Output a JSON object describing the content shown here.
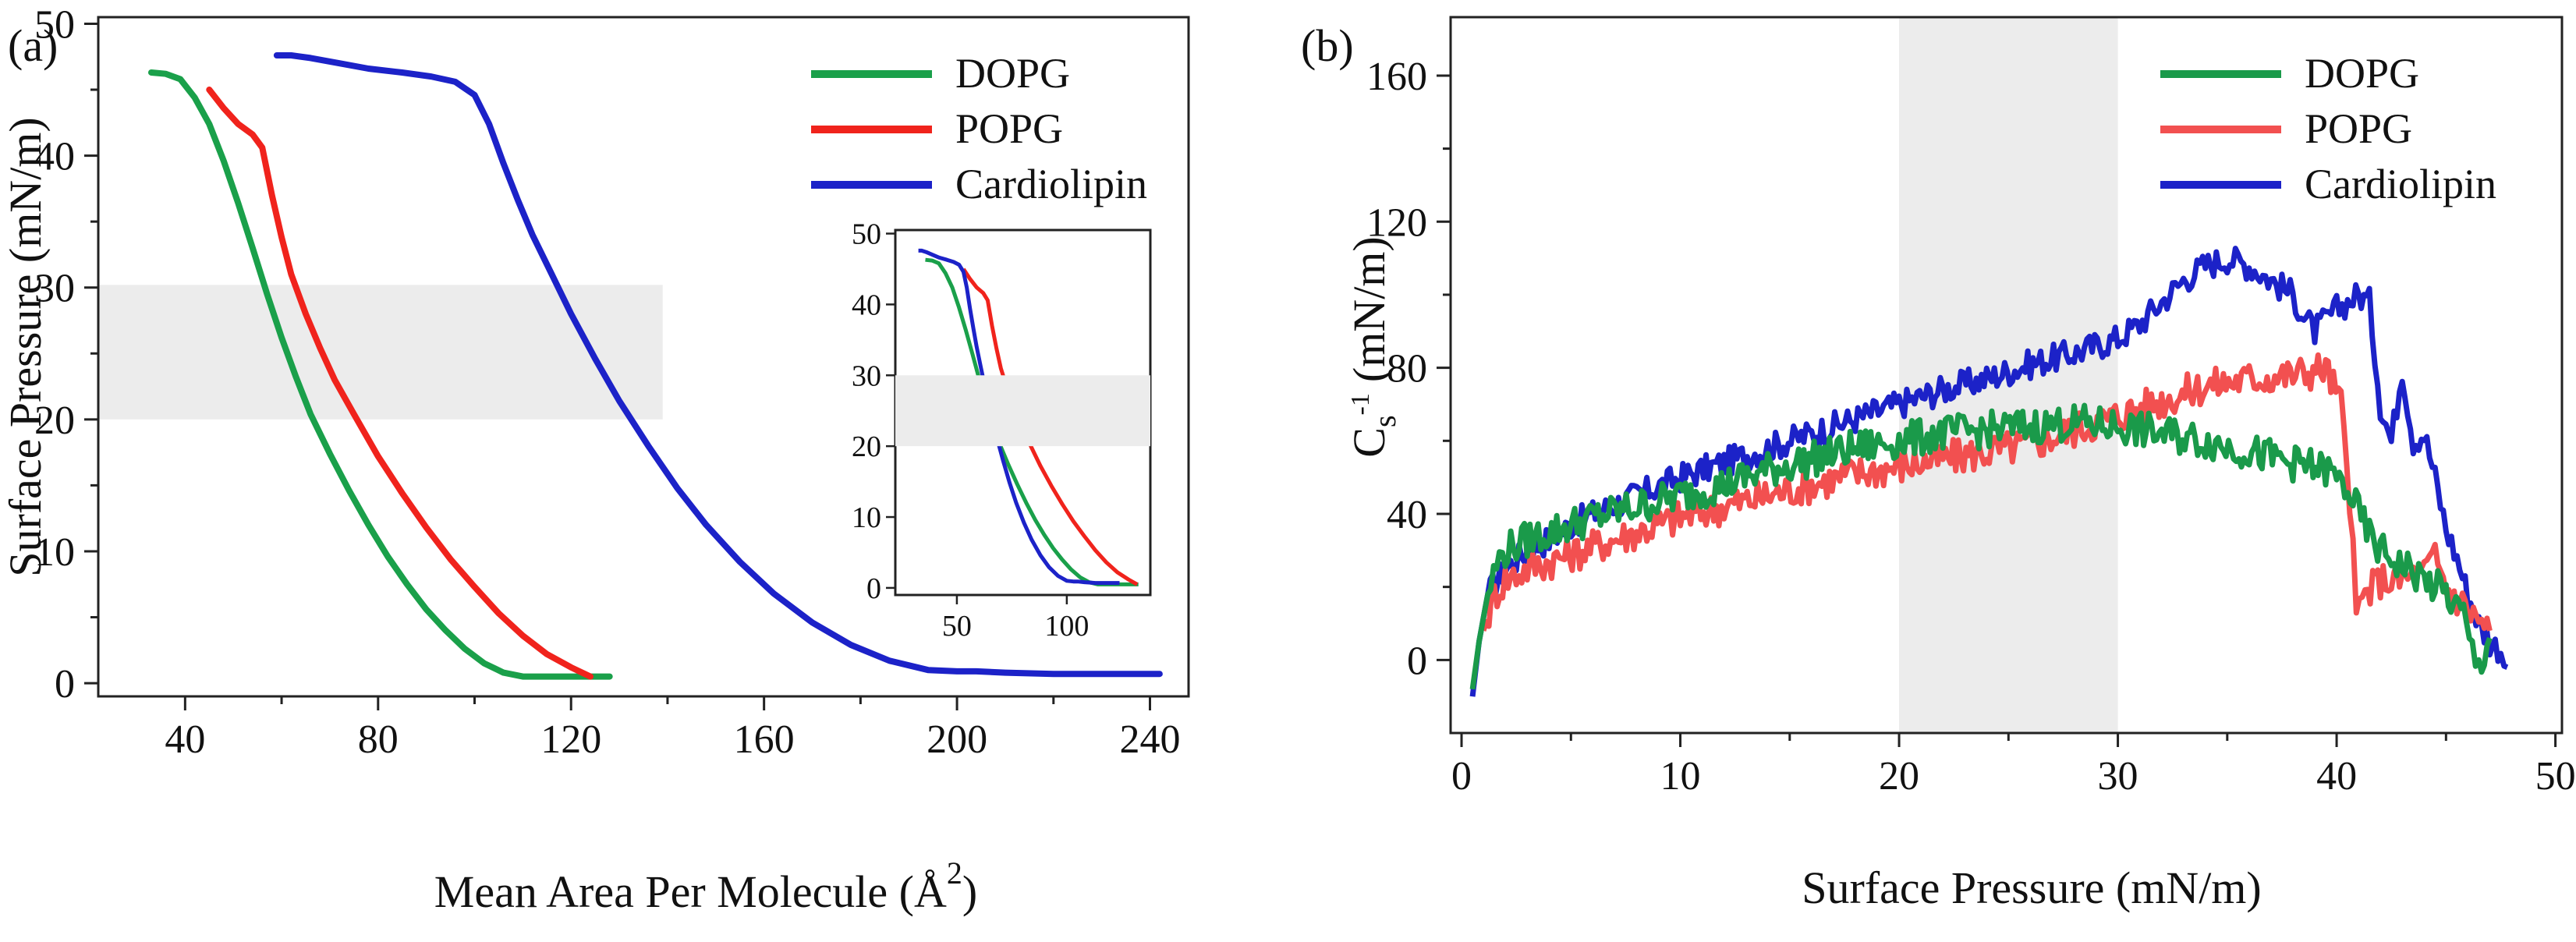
{
  "figure": {
    "panels": [
      "a",
      "b"
    ]
  },
  "chart_data": [
    {
      "id": "a",
      "type": "line",
      "panel_label": "(a)",
      "xlabel": "Mean Area Per Molecule (Å",
      "xlabel_sup": "2",
      "xlabel_close": ")",
      "ylabel": "Surface Pressure (mN/m)",
      "xlim": [
        22,
        248
      ],
      "ylim": [
        -1,
        50.5
      ],
      "xticks": [
        40,
        80,
        120,
        160,
        200,
        240
      ],
      "yticks": [
        0,
        10,
        20,
        30,
        40,
        50
      ],
      "shaded_region": {
        "x": [
          22,
          139
        ],
        "y": [
          20,
          30.2
        ]
      },
      "legend_position": "top-right",
      "colors": {
        "DOPG": "#1aa04a",
        "POPG": "#f0231c",
        "Cardiolipin": "#1c22c8",
        "shade": "#ececec"
      },
      "series": [
        {
          "name": "DOPG",
          "points": [
            [
              33,
              46.3
            ],
            [
              36,
              46.2
            ],
            [
              39,
              45.8
            ],
            [
              42,
              44.4
            ],
            [
              45,
              42.4
            ],
            [
              48,
              39.6
            ],
            [
              51,
              36.4
            ],
            [
              54,
              33.0
            ],
            [
              57,
              29.5
            ],
            [
              60,
              26.2
            ],
            [
              63,
              23.2
            ],
            [
              66,
              20.4
            ],
            [
              70,
              17.4
            ],
            [
              74,
              14.6
            ],
            [
              78,
              12.0
            ],
            [
              82,
              9.6
            ],
            [
              86,
              7.5
            ],
            [
              90,
              5.6
            ],
            [
              94,
              4.0
            ],
            [
              98,
              2.6
            ],
            [
              102,
              1.5
            ],
            [
              106,
              0.8
            ],
            [
              110,
              0.5
            ],
            [
              118,
              0.5
            ],
            [
              128,
              0.5
            ]
          ]
        },
        {
          "name": "POPG",
          "points": [
            [
              45,
              45.0
            ],
            [
              48,
              43.6
            ],
            [
              51,
              42.4
            ],
            [
              54,
              41.6
            ],
            [
              56,
              40.6
            ],
            [
              58,
              37.0
            ],
            [
              60,
              33.8
            ],
            [
              62,
              31.0
            ],
            [
              65,
              28.0
            ],
            [
              68,
              25.4
            ],
            [
              71,
              23.0
            ],
            [
              75,
              20.4
            ],
            [
              80,
              17.2
            ],
            [
              85,
              14.4
            ],
            [
              90,
              11.8
            ],
            [
              95,
              9.4
            ],
            [
              100,
              7.3
            ],
            [
              105,
              5.3
            ],
            [
              110,
              3.6
            ],
            [
              115,
              2.2
            ],
            [
              120,
              1.2
            ],
            [
              124,
              0.5
            ]
          ]
        },
        {
          "name": "Cardiolipin",
          "points": [
            [
              59,
              47.6
            ],
            [
              62,
              47.6
            ],
            [
              66,
              47.4
            ],
            [
              72,
              47.0
            ],
            [
              78,
              46.6
            ],
            [
              85,
              46.3
            ],
            [
              91,
              46.0
            ],
            [
              96,
              45.6
            ],
            [
              100,
              44.6
            ],
            [
              103,
              42.4
            ],
            [
              106,
              39.4
            ],
            [
              109,
              36.6
            ],
            [
              112,
              34.0
            ],
            [
              116,
              31.0
            ],
            [
              120,
              28.0
            ],
            [
              125,
              24.6
            ],
            [
              130,
              21.4
            ],
            [
              136,
              18.0
            ],
            [
              142,
              14.8
            ],
            [
              148,
              12.0
            ],
            [
              155,
              9.2
            ],
            [
              162,
              6.8
            ],
            [
              170,
              4.6
            ],
            [
              178,
              2.9
            ],
            [
              186,
              1.7
            ],
            [
              194,
              1.0
            ],
            [
              200,
              0.9
            ],
            [
              204,
              0.9
            ],
            [
              210,
              0.8
            ],
            [
              220,
              0.7
            ],
            [
              230,
              0.7
            ],
            [
              242,
              0.7
            ]
          ]
        }
      ],
      "inset": {
        "xlim": [
          22,
          138
        ],
        "ylim": [
          -1,
          50.5
        ],
        "xticks": [
          50,
          100
        ],
        "yticks": [
          0,
          10,
          20,
          30,
          40,
          50
        ],
        "shaded_region": {
          "x": [
            22,
            138
          ],
          "y": [
            20,
            30
          ]
        }
      }
    },
    {
      "id": "b",
      "type": "line",
      "panel_label": "(b)",
      "xlabel": "Surface Pressure (mN/m)",
      "ylabel": "C",
      "ylabel_sub": "s",
      "ylabel_sup": "-1",
      "ylabel_rest": "(mN/m)",
      "xlim": [
        -0.5,
        50.3
      ],
      "ylim": [
        -20,
        176
      ],
      "xticks": [
        0,
        10,
        20,
        30,
        40,
        50
      ],
      "yticks": [
        0,
        40,
        80,
        120,
        160
      ],
      "shaded_region": {
        "x": [
          20,
          30
        ],
        "y": [
          -20,
          176
        ]
      },
      "legend_position": "top-right",
      "colors": {
        "DOPG": "#1a9a4a",
        "POPG": "#f25050",
        "Cardiolipin": "#1c22c8",
        "shade": "#ececec"
      },
      "noise_amplitude": {
        "DOPG": 5,
        "POPG": 5,
        "Cardiolipin": 4
      },
      "series": [
        {
          "name": "DOPG",
          "points": [
            [
              0.5,
              -8
            ],
            [
              0.8,
              5
            ],
            [
              1.2,
              18
            ],
            [
              1.6,
              26
            ],
            [
              2,
              30
            ],
            [
              3,
              33
            ],
            [
              4,
              35
            ],
            [
              6,
              39
            ],
            [
              8,
              42
            ],
            [
              10,
              45
            ],
            [
              12,
              48
            ],
            [
              14,
              52
            ],
            [
              16,
              55
            ],
            [
              18,
              58
            ],
            [
              20,
              60
            ],
            [
              22,
              62
            ],
            [
              24,
              63
            ],
            [
              26,
              64
            ],
            [
              28,
              65
            ],
            [
              30,
              64
            ],
            [
              32,
              62
            ],
            [
              34,
              60
            ],
            [
              36,
              57
            ],
            [
              38,
              54
            ],
            [
              39.5,
              52
            ],
            [
              40.5,
              47
            ],
            [
              41,
              40
            ],
            [
              41.5,
              34
            ],
            [
              42,
              30
            ],
            [
              43,
              26
            ],
            [
              44,
              22
            ],
            [
              45,
              18
            ],
            [
              45.8,
              12
            ],
            [
              46.2,
              2
            ],
            [
              46.5,
              -2
            ],
            [
              47,
              6
            ]
          ]
        },
        {
          "name": "POPG",
          "points": [
            [
              1,
              8
            ],
            [
              1.5,
              18
            ],
            [
              2,
              22
            ],
            [
              3,
              25
            ],
            [
              4,
              27
            ],
            [
              6,
              31
            ],
            [
              8,
              35
            ],
            [
              10,
              39
            ],
            [
              12,
              42
            ],
            [
              14,
              45
            ],
            [
              16,
              48
            ],
            [
              18,
              51
            ],
            [
              20,
              53
            ],
            [
              22,
              55
            ],
            [
              24,
              57
            ],
            [
              26,
              59
            ],
            [
              28,
              63
            ],
            [
              30,
              67
            ],
            [
              32,
              71
            ],
            [
              34,
              75
            ],
            [
              36,
              77
            ],
            [
              38,
              78
            ],
            [
              39.5,
              80
            ],
            [
              40.2,
              70
            ],
            [
              40.6,
              45
            ],
            [
              40.9,
              12
            ],
            [
              41.3,
              18
            ],
            [
              42,
              22
            ],
            [
              43,
              22
            ],
            [
              44,
              24
            ],
            [
              44.5,
              28
            ],
            [
              45,
              20
            ],
            [
              46,
              14
            ],
            [
              47,
              8
            ]
          ]
        },
        {
          "name": "Cardiolipin",
          "points": [
            [
              0.5,
              -10
            ],
            [
              0.8,
              5
            ],
            [
              1.2,
              18
            ],
            [
              2,
              25
            ],
            [
              3,
              30
            ],
            [
              4,
              33
            ],
            [
              5,
              37
            ],
            [
              6,
              40
            ],
            [
              8,
              45
            ],
            [
              10,
              50
            ],
            [
              12,
              54
            ],
            [
              14,
              58
            ],
            [
              16,
              62
            ],
            [
              18,
              66
            ],
            [
              20,
              70
            ],
            [
              22,
              74
            ],
            [
              24,
              77
            ],
            [
              26,
              81
            ],
            [
              28,
              84
            ],
            [
              30,
              88
            ],
            [
              31,
              92
            ],
            [
              32,
              98
            ],
            [
              33,
              104
            ],
            [
              34,
              108
            ],
            [
              35,
              110
            ],
            [
              36,
              108
            ],
            [
              37,
              104
            ],
            [
              38,
              100
            ],
            [
              38.5,
              94
            ],
            [
              39,
              90
            ],
            [
              40,
              96
            ],
            [
              41,
              100
            ],
            [
              41.5,
              98
            ],
            [
              42,
              70
            ],
            [
              42.5,
              60
            ],
            [
              43,
              80
            ],
            [
              43.5,
              60
            ],
            [
              44,
              62
            ],
            [
              44.5,
              50
            ],
            [
              45,
              36
            ],
            [
              45.5,
              28
            ],
            [
              46,
              18
            ],
            [
              46.5,
              10
            ],
            [
              47,
              5
            ],
            [
              47.5,
              3
            ],
            [
              47.8,
              -2
            ]
          ]
        }
      ]
    }
  ]
}
